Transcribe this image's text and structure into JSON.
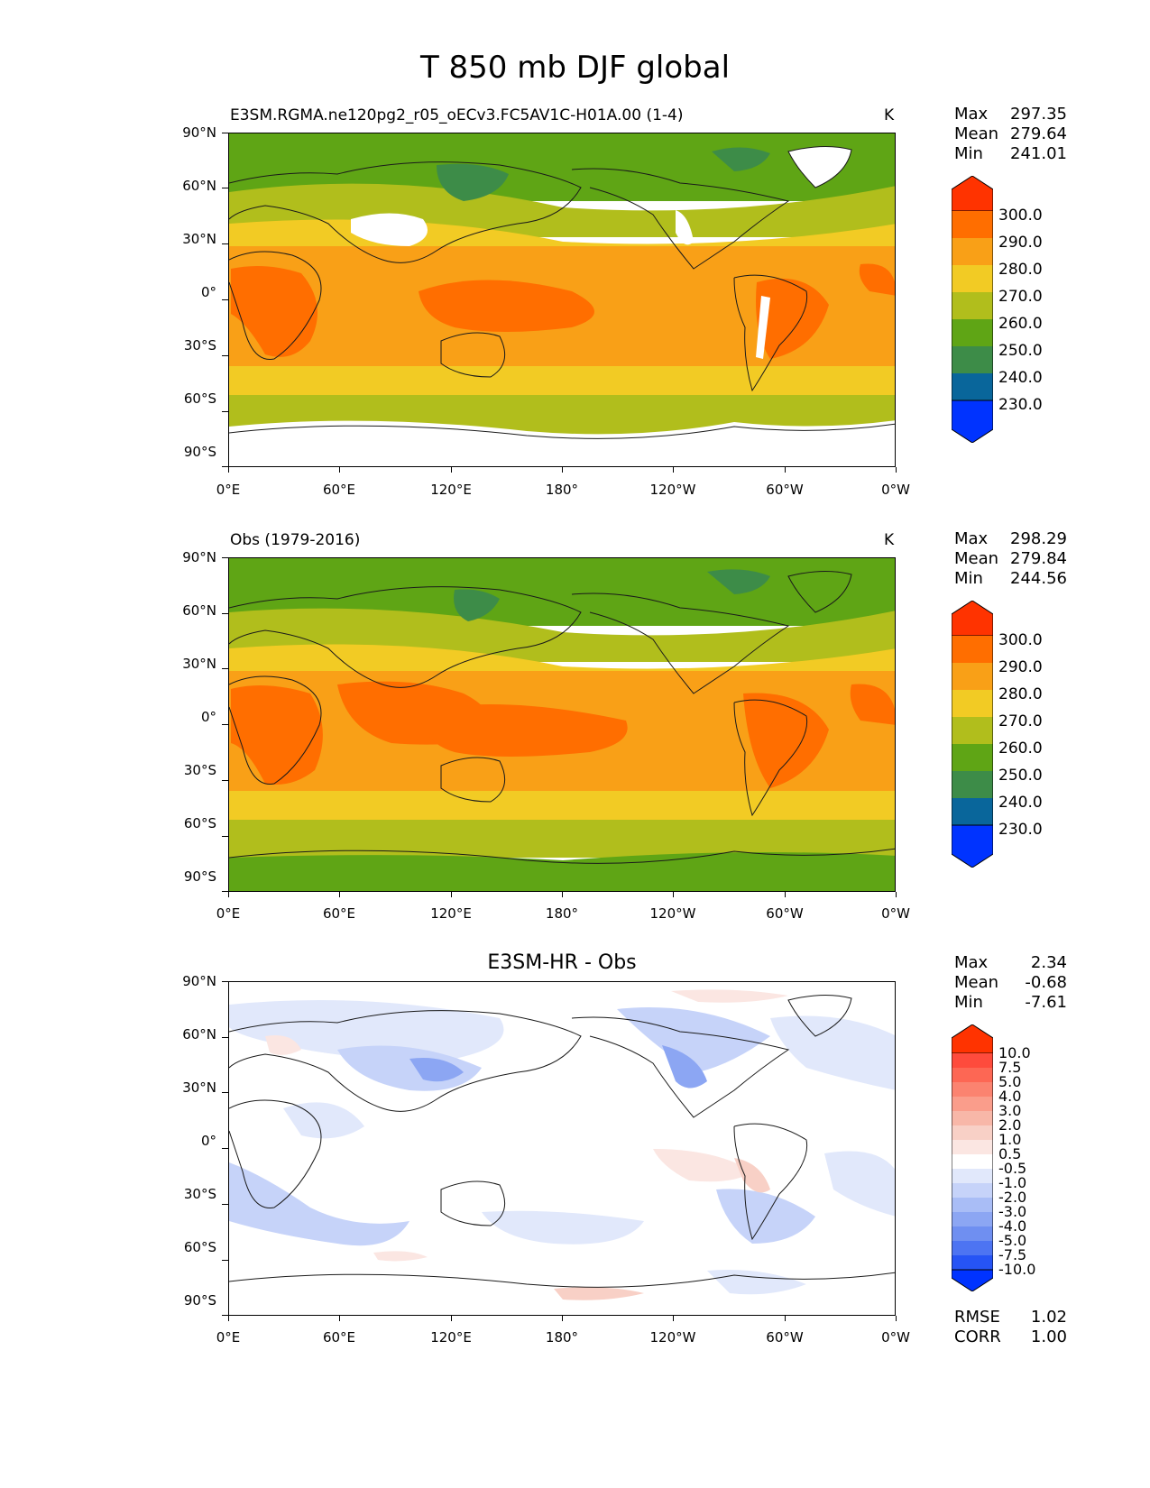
{
  "figure_title": "T 850 mb DJF global",
  "x_tick_labels": [
    "0°E",
    "60°E",
    "120°E",
    "180°",
    "120°W",
    "60°W",
    "0°W"
  ],
  "y_tick_labels": [
    "90°N",
    "60°N",
    "30°N",
    "0°",
    "30°S",
    "60°S",
    "90°S"
  ],
  "panels": [
    {
      "label": "E3SM.RGMA.ne120pg2_r05_oECv3.FC5AV1C-H01A.00 (1-4)",
      "units": "K",
      "stats": {
        "max_label": "Max",
        "max": "297.35",
        "mean_label": "Mean",
        "mean": "279.64",
        "min_label": "Min",
        "min": "241.01"
      },
      "colorbar": {
        "labels": [
          "300.0",
          "290.0",
          "280.0",
          "270.0",
          "260.0",
          "250.0",
          "240.0",
          "230.0"
        ],
        "colors": [
          "#ff3300",
          "#ff6e00",
          "#f9a017",
          "#f2cb24",
          "#b1be1c",
          "#5fa515",
          "#3d8c48",
          "#09669b",
          "#0033ff"
        ]
      }
    },
    {
      "label": "Obs (1979-2016)",
      "units": "K",
      "stats": {
        "max_label": "Max",
        "max": "298.29",
        "mean_label": "Mean",
        "mean": "279.84",
        "min_label": "Min",
        "min": "244.56"
      },
      "colorbar": {
        "labels": [
          "300.0",
          "290.0",
          "280.0",
          "270.0",
          "260.0",
          "250.0",
          "240.0",
          "230.0"
        ],
        "colors": [
          "#ff3300",
          "#ff6e00",
          "#f9a017",
          "#f2cb24",
          "#b1be1c",
          "#5fa515",
          "#3d8c48",
          "#09669b",
          "#0033ff"
        ]
      }
    },
    {
      "label": "E3SM-HR - Obs",
      "stats": {
        "max_label": "Max",
        "max": "2.34",
        "mean_label": "Mean",
        "mean": "-0.68",
        "min_label": "Min",
        "min": "-7.61"
      },
      "colorbar": {
        "labels": [
          "10.0",
          "7.5",
          "5.0",
          "4.0",
          "3.0",
          "2.0",
          "1.0",
          "0.5",
          "-0.5",
          "-1.0",
          "-2.0",
          "-3.0",
          "-4.0",
          "-5.0",
          "-7.5",
          "-10.0"
        ],
        "colors": [
          "#ff3300",
          "#fe4b3c",
          "#fd6754",
          "#fb8370",
          "#fa9d8b",
          "#f8b7a8",
          "#f8d0c6",
          "#fbe6e2",
          "#ffffff",
          "#e1e8fb",
          "#c6d3f9",
          "#a9bdf6",
          "#8ca6f3",
          "#6f8ff1",
          "#4d74f2",
          "#2654f5",
          "#0033ff"
        ]
      },
      "metrics": {
        "rmse_label": "RMSE",
        "rmse": "1.02",
        "corr_label": "CORR",
        "corr": "1.00"
      }
    }
  ]
}
